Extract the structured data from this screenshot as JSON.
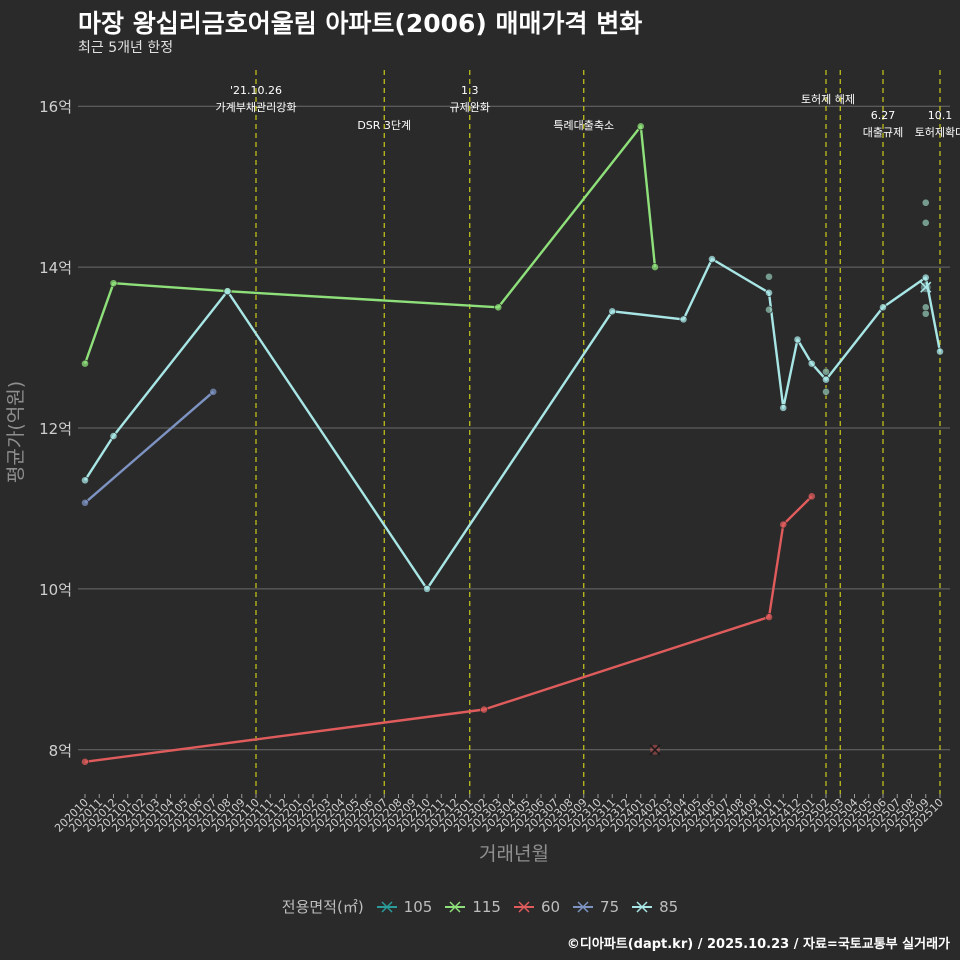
{
  "header": {
    "title": "마장 왕십리금호어울림 아파트(2006) 매매가격 변화",
    "subtitle": "최근 5개년 한정"
  },
  "footer": {
    "credit": "©디아파트(dapt.kr) / 2025.10.23 / 자료=국토교통부 실거래가"
  },
  "legend": {
    "title": "전용면적(㎡)",
    "items": [
      {
        "label": "105",
        "color": "#2a9d9a"
      },
      {
        "label": "115",
        "color": "#8ee07a"
      },
      {
        "label": "60",
        "color": "#e05c5c"
      },
      {
        "label": "75",
        "color": "#7d93c2"
      },
      {
        "label": "85",
        "color": "#a8e6e6"
      }
    ]
  },
  "chart_data": {
    "type": "line",
    "title": "마장 왕십리금호어울림 아파트(2006) 매매가격 변화",
    "xlabel": "거래년월",
    "ylabel": "평균가(억원)",
    "ylim": [
      7.45,
      16.45
    ],
    "y_ticks": [
      8,
      10,
      12,
      14,
      16
    ],
    "y_tick_labels": [
      "8억",
      "10억",
      "12억",
      "14억",
      "16억"
    ],
    "x_labels": [
      "202010",
      "202011",
      "202012",
      "202101",
      "202102",
      "202103",
      "202104",
      "202105",
      "202106",
      "202107",
      "202108",
      "202109",
      "202110",
      "202111",
      "202112",
      "202201",
      "202202",
      "202203",
      "202204",
      "202205",
      "202206",
      "202207",
      "202208",
      "202209",
      "202210",
      "202211",
      "202212",
      "202301",
      "202302",
      "202303",
      "202304",
      "202305",
      "202306",
      "202307",
      "202308",
      "202309",
      "202310",
      "202311",
      "202312",
      "202401",
      "202402",
      "202403",
      "202404",
      "202405",
      "202406",
      "202407",
      "202408",
      "202409",
      "202410",
      "202411",
      "202412",
      "202501",
      "202502",
      "202503",
      "202504",
      "202505",
      "202506",
      "202507",
      "202508",
      "202509",
      "202510"
    ],
    "series": [
      {
        "name": "115",
        "color": "#8ee07a",
        "points": [
          [
            0,
            12.8
          ],
          [
            2,
            13.8
          ],
          [
            10,
            13.7
          ],
          [
            29,
            13.5
          ],
          [
            39,
            15.75
          ],
          [
            40,
            14.0
          ]
        ]
      },
      {
        "name": "85",
        "color": "#a8e6e6",
        "points": [
          [
            0,
            11.35
          ],
          [
            2,
            11.9
          ],
          [
            10,
            13.7
          ],
          [
            24,
            10.0
          ],
          [
            37,
            13.45
          ],
          [
            42,
            13.35
          ],
          [
            44,
            14.1
          ],
          [
            48,
            13.68
          ],
          [
            49,
            12.25
          ],
          [
            50,
            13.1
          ],
          [
            51,
            12.8
          ],
          [
            52,
            12.6
          ],
          [
            56,
            13.5
          ],
          [
            59,
            13.87
          ],
          [
            60,
            12.95
          ]
        ]
      },
      {
        "name": "75",
        "color": "#7d93c2",
        "points": [
          [
            0,
            11.07
          ],
          [
            9,
            12.45
          ]
        ]
      },
      {
        "name": "60",
        "color": "#e05c5c",
        "points": [
          [
            0,
            7.85
          ],
          [
            28,
            8.5
          ],
          [
            48,
            9.65
          ],
          [
            49,
            10.8
          ],
          [
            51,
            11.15
          ]
        ]
      },
      {
        "name": "105",
        "color": "#2a9d9a",
        "points": []
      }
    ],
    "scatter_points": [
      {
        "series": "85",
        "x": 48,
        "y": 13.88
      },
      {
        "series": "85",
        "x": 48,
        "y": 13.47
      },
      {
        "series": "85",
        "x": 52,
        "y": 12.7
      },
      {
        "series": "85",
        "x": 52,
        "y": 12.45
      },
      {
        "series": "85",
        "x": 59,
        "y": 14.8
      },
      {
        "series": "85",
        "x": 59,
        "y": 14.55
      },
      {
        "series": "85",
        "x": 59,
        "y": 13.5
      },
      {
        "series": "85",
        "x": 59,
        "y": 13.42
      }
    ],
    "cross_points": [
      {
        "series": "60",
        "x": 40,
        "y": 8.0
      },
      {
        "series": "85",
        "x": 59,
        "y": 13.75
      }
    ],
    "events": [
      {
        "x": 12,
        "lines": [
          "'21.10.26",
          "가계부채관리강화"
        ],
        "tier": 0
      },
      {
        "x": 21,
        "lines": [
          "DSR 3단계"
        ],
        "tier": 2
      },
      {
        "x": 27,
        "lines": [
          "1.3",
          "규제완화"
        ],
        "tier": 0
      },
      {
        "x": 35,
        "lines": [
          "특례대출축소"
        ],
        "tier": 2
      },
      {
        "x": 52,
        "lines": [
          "토허제 해제"
        ],
        "tier": 1
      },
      {
        "x": 53,
        "lines": [],
        "tier": 1
      },
      {
        "x": 56,
        "lines": [
          "6.27",
          "대출규제"
        ],
        "tier": 3
      },
      {
        "x": 60,
        "lines": [
          "10.1",
          "토허제확대"
        ],
        "tier": 3
      }
    ]
  }
}
